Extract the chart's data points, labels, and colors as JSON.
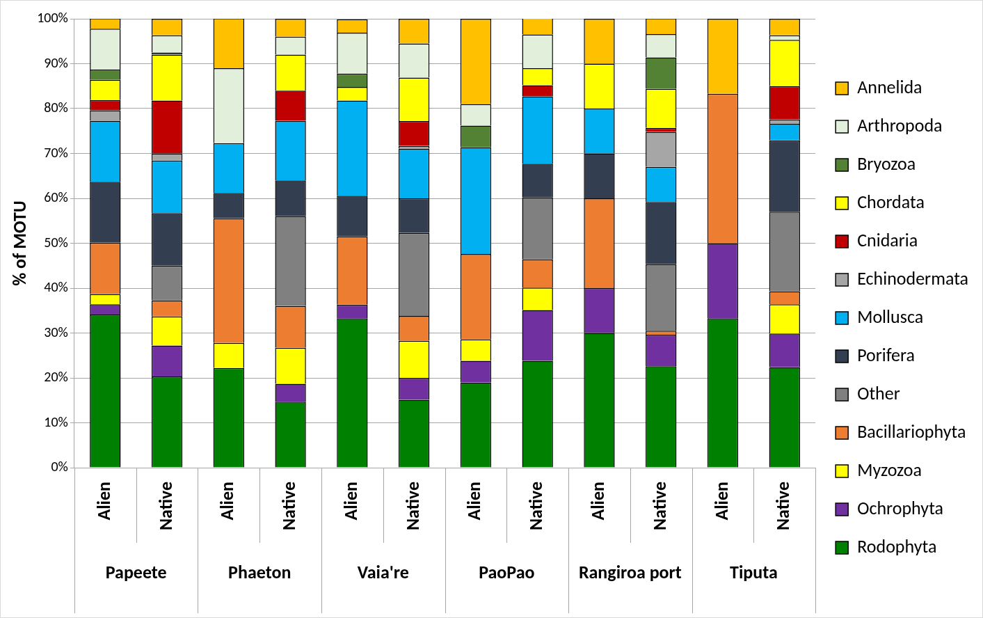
{
  "chart_data": {
    "type": "bar",
    "stacked": true,
    "ylabel": "% of MOTU",
    "categories": [
      "Alien",
      "Native",
      "Alien",
      "Native",
      "Alien",
      "Native",
      "Alien",
      "Native",
      "Alien",
      "Native",
      "Alien",
      "Native"
    ],
    "annotations": [
      "Papeete",
      "Phaeton",
      "Vaia're",
      "PaoPao",
      "Rangiroa port",
      "Tiputa"
    ],
    "ylim": [
      0,
      100
    ],
    "yticks": [
      {
        "value": 0,
        "label": "0%"
      },
      {
        "value": 10,
        "label": "10%"
      },
      {
        "value": 20,
        "label": "20%"
      },
      {
        "value": 30,
        "label": "30%"
      },
      {
        "value": 40,
        "label": "40%"
      },
      {
        "value": 50,
        "label": "50%"
      },
      {
        "value": 60,
        "label": "60%"
      },
      {
        "value": 70,
        "label": "70%"
      },
      {
        "value": 80,
        "label": "80%"
      },
      {
        "value": 90,
        "label": "90%"
      },
      {
        "value": 100,
        "label": "100%"
      }
    ],
    "grid": "y",
    "legend": "right",
    "series": [
      {
        "name": "Rodophyta",
        "color": "#008000",
        "values": [
          34.1,
          20.3,
          22.2,
          14.7,
          33.3,
          15.1,
          19,
          23.8,
          30,
          22.6,
          33.3,
          22.4
        ]
      },
      {
        "name": "Ochrophyta",
        "color": "#7030a0",
        "values": [
          2.3,
          6.9,
          0,
          4,
          3,
          4.9,
          4.8,
          11.3,
          10,
          7,
          16.7,
          7.5
        ]
      },
      {
        "name": "Myzozoa",
        "color": "#ffff00",
        "values": [
          2.3,
          6.5,
          5.6,
          8,
          0,
          8.3,
          4.8,
          5,
          0,
          0,
          0,
          6.5
        ]
      },
      {
        "name": "Bacillariophyta",
        "color": "#ed7d31",
        "values": [
          11.4,
          3.6,
          27.8,
          9.3,
          15.2,
          5.5,
          19,
          6.3,
          20,
          0.9,
          33.3,
          2.9
        ]
      },
      {
        "name": "Other",
        "color": "#808080",
        "values": [
          0,
          7.7,
          0,
          20,
          0,
          18.5,
          0,
          13.8,
          0,
          14.8,
          0,
          17.7
        ]
      },
      {
        "name": "Porifera",
        "color": "#333f50",
        "values": [
          13.6,
          11.7,
          5.6,
          8,
          9.1,
          7.7,
          0,
          7.5,
          10,
          13.9,
          0,
          15.9
        ]
      },
      {
        "name": "Mollusca",
        "color": "#00b0f0",
        "values": [
          13.6,
          11.7,
          11.1,
          13.3,
          21.2,
          11.1,
          23.8,
          15,
          10,
          7.8,
          0,
          3.7
        ]
      },
      {
        "name": "Echinodermata",
        "color": "#a6a6a6",
        "values": [
          2.3,
          1.6,
          0,
          0,
          0,
          0.6,
          0,
          0,
          0,
          7.8,
          0,
          1
        ]
      },
      {
        "name": "Cnidaria",
        "color": "#c00000",
        "values": [
          2.3,
          11.8,
          0,
          6.7,
          0,
          5.5,
          0,
          2.5,
          0,
          0.9,
          0,
          7.4
        ]
      },
      {
        "name": "Chordata",
        "color": "#ffff00",
        "values": [
          4.5,
          10.2,
          0,
          8,
          3,
          9.7,
          0,
          3.8,
          10,
          8.7,
          0,
          10.3
        ]
      },
      {
        "name": "Bryozoa",
        "color": "#548235",
        "values": [
          2.3,
          0.5,
          0,
          0,
          3,
          0,
          4.8,
          0,
          0,
          7,
          0,
          0
        ]
      },
      {
        "name": "Arthropoda",
        "color": "#e2efda",
        "values": [
          9.1,
          3.8,
          16.7,
          4,
          9.1,
          7.6,
          4.8,
          7.5,
          0,
          5.2,
          0,
          1
        ]
      },
      {
        "name": "Annelida",
        "color": "#ffc000",
        "values": [
          2.3,
          3.7,
          11.1,
          4,
          3,
          5.5,
          19,
          3.8,
          10,
          3.5,
          16.7,
          3.7
        ]
      }
    ]
  }
}
